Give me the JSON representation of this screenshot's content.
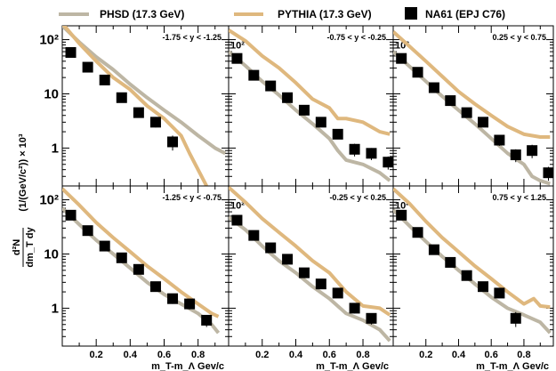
{
  "legend": [
    {
      "label": "PHSD (17.3 GeV)",
      "color": "#bdb6a4",
      "marker": "line"
    },
    {
      "label": "PYTHIA (17.3 GeV)",
      "color": "#dfb87e",
      "marker": "line"
    },
    {
      "label": "NA61 (EPJ C76)",
      "color": "#000000",
      "marker": "square"
    }
  ],
  "y_axis": {
    "title_numerator": "d²N",
    "title_denominator": "dm_T dy",
    "title_units": "(1/(GeV/c²)) × 10³",
    "ticks": [
      {
        "value": 1,
        "label": "1"
      },
      {
        "value": 10,
        "label": "10"
      },
      {
        "value": 100,
        "label": "10²"
      }
    ],
    "scale": "log",
    "ylim": [
      0.2,
      180
    ]
  },
  "x_axis": {
    "title": "m_T-m_Λ Gev/c",
    "ticks": [
      {
        "value": 0.2,
        "label": "0.2"
      },
      {
        "value": 0.4,
        "label": "0.4"
      },
      {
        "value": 0.6,
        "label": "0.6"
      },
      {
        "value": 0.8,
        "label": "0.8"
      }
    ],
    "xlim": [
      0.0,
      0.98
    ]
  },
  "chart_data": [
    {
      "type": "line",
      "panel_label": "-1.75 < y < -1.25",
      "x_data": [
        0.05,
        0.15,
        0.25,
        0.35,
        0.45,
        0.55,
        0.65,
        0.75,
        0.85
      ],
      "data": [
        58,
        31,
        18,
        8.5,
        4.5,
        3.0,
        1.3,
        null,
        null
      ],
      "data_err": [
        6,
        3,
        2,
        1,
        0.8,
        0.6,
        0.4,
        null,
        null
      ],
      "phsd": {
        "x": [
          0.0,
          0.1,
          0.2,
          0.3,
          0.4,
          0.5,
          0.6,
          0.7,
          0.8,
          0.9,
          0.96
        ],
        "y": [
          180,
          90,
          48,
          28,
          15,
          8.5,
          5.0,
          3.0,
          1.7,
          1.0,
          0.8
        ]
      },
      "pythia": {
        "x": [
          0.0,
          0.1,
          0.2,
          0.3,
          0.4,
          0.5,
          0.6,
          0.7,
          0.75,
          0.8,
          0.85
        ],
        "y": [
          200,
          85,
          40,
          20,
          12,
          6.0,
          3.5,
          1.7,
          0.8,
          0.4,
          0.2
        ]
      }
    },
    {
      "type": "line",
      "panel_label": "-0.75 < y < -0.25",
      "x_data": [
        0.05,
        0.15,
        0.25,
        0.35,
        0.45,
        0.55,
        0.65,
        0.75,
        0.85,
        0.95
      ],
      "data": [
        45,
        22,
        14,
        8.5,
        5.0,
        3.0,
        1.8,
        0.95,
        0.8,
        0.55
      ],
      "data_err": [
        5,
        3,
        2,
        1,
        0.8,
        0.5,
        0.3,
        0.25,
        0.2,
        0.15
      ],
      "phsd": {
        "x": [
          0.0,
          0.1,
          0.2,
          0.3,
          0.4,
          0.5,
          0.6,
          0.65,
          0.7,
          0.8,
          0.9,
          0.96
        ],
        "y": [
          60,
          33,
          17,
          9.5,
          5.0,
          2.8,
          1.5,
          0.9,
          0.6,
          0.5,
          0.35,
          0.25
        ]
      },
      "pythia": {
        "x": [
          0.0,
          0.1,
          0.2,
          0.3,
          0.4,
          0.5,
          0.6,
          0.65,
          0.7,
          0.8,
          0.9,
          0.96
        ],
        "y": [
          150,
          95,
          50,
          30,
          16,
          8.0,
          5.5,
          3.5,
          3.5,
          3.0,
          2.0,
          1.8
        ]
      }
    },
    {
      "type": "line",
      "panel_label": "0.25 < y < 0.75",
      "x_data": [
        0.05,
        0.15,
        0.25,
        0.35,
        0.45,
        0.55,
        0.65,
        0.75,
        0.85,
        0.95
      ],
      "data": [
        45,
        25,
        13,
        7.5,
        4.5,
        3.0,
        1.4,
        0.75,
        0.9,
        0.35
      ],
      "data_err": [
        5,
        3,
        2,
        1,
        0.8,
        0.5,
        0.3,
        0.2,
        0.25,
        0.1
      ],
      "phsd": {
        "x": [
          0.0,
          0.1,
          0.2,
          0.3,
          0.4,
          0.5,
          0.6,
          0.7,
          0.8,
          0.85,
          0.9,
          0.96
        ],
        "y": [
          60,
          32,
          17,
          9.0,
          5.0,
          2.8,
          1.5,
          0.8,
          0.5,
          0.3,
          0.25,
          0.22
        ]
      },
      "pythia": {
        "x": [
          0.0,
          0.1,
          0.2,
          0.3,
          0.4,
          0.5,
          0.6,
          0.7,
          0.8,
          0.9,
          0.96
        ],
        "y": [
          140,
          75,
          40,
          21,
          11,
          6.5,
          4.0,
          2.5,
          1.8,
          1.6,
          1.6
        ]
      }
    },
    {
      "type": "line",
      "panel_label": "-1.25 < y < -0.75",
      "x_data": [
        0.05,
        0.15,
        0.25,
        0.35,
        0.45,
        0.55,
        0.65,
        0.75,
        0.85
      ],
      "data": [
        52,
        27,
        14,
        8.5,
        5.2,
        2.5,
        1.5,
        1.2,
        0.6
      ],
      "data_err": [
        6,
        3,
        2,
        1,
        0.7,
        0.4,
        0.3,
        0.25,
        0.15
      ],
      "phsd": {
        "x": [
          0.0,
          0.1,
          0.2,
          0.3,
          0.4,
          0.5,
          0.6,
          0.7,
          0.8,
          0.88,
          0.92
        ],
        "y": [
          70,
          35,
          18,
          10,
          5.5,
          3.0,
          1.8,
          1.2,
          0.8,
          0.5,
          0.35
        ]
      },
      "pythia": {
        "x": [
          0.0,
          0.1,
          0.2,
          0.3,
          0.4,
          0.5,
          0.6,
          0.7,
          0.8,
          0.88,
          0.92
        ],
        "y": [
          160,
          80,
          38,
          20,
          11,
          6.0,
          3.5,
          2.0,
          1.2,
          0.8,
          0.7
        ]
      }
    },
    {
      "type": "line",
      "panel_label": "-0.25 < y < 0.25",
      "x_data": [
        0.05,
        0.15,
        0.25,
        0.35,
        0.45,
        0.55,
        0.65,
        0.75,
        0.85
      ],
      "data": [
        42,
        22,
        13,
        8.0,
        4.5,
        2.8,
        1.9,
        1.0,
        0.65
      ],
      "data_err": [
        5,
        3,
        2,
        1,
        0.7,
        0.5,
        0.3,
        0.2,
        0.15
      ],
      "phsd": {
        "x": [
          0.0,
          0.1,
          0.2,
          0.3,
          0.4,
          0.5,
          0.6,
          0.7,
          0.8,
          0.9,
          0.96
        ],
        "y": [
          48,
          28,
          14,
          7.5,
          4.5,
          2.5,
          1.5,
          0.8,
          0.6,
          0.4,
          0.25
        ]
      },
      "pythia": {
        "x": [
          0.0,
          0.1,
          0.2,
          0.3,
          0.4,
          0.5,
          0.6,
          0.65,
          0.7,
          0.8,
          0.9,
          0.96
        ],
        "y": [
          170,
          90,
          45,
          25,
          14,
          7.5,
          4.5,
          3.0,
          2.0,
          1.1,
          1.0,
          0.75
        ]
      }
    },
    {
      "type": "line",
      "panel_label": "0.75 < y < 1.25",
      "x_data": [
        0.05,
        0.15,
        0.25,
        0.35,
        0.45,
        0.55,
        0.65,
        0.75
      ],
      "data": [
        52,
        25,
        12,
        7.0,
        4.0,
        2.5,
        1.9,
        0.65
      ],
      "data_err": [
        6,
        3,
        2,
        1,
        0.6,
        0.4,
        0.3,
        0.2
      ],
      "phsd": {
        "x": [
          0.0,
          0.1,
          0.2,
          0.3,
          0.4,
          0.5,
          0.6,
          0.7,
          0.8,
          0.9,
          0.96
        ],
        "y": [
          65,
          33,
          17,
          9.0,
          5.0,
          2.8,
          1.6,
          1.0,
          0.75,
          0.55,
          0.35
        ]
      },
      "pythia": {
        "x": [
          0.0,
          0.1,
          0.2,
          0.3,
          0.4,
          0.5,
          0.6,
          0.7,
          0.8,
          0.86,
          0.9,
          0.96
        ],
        "y": [
          160,
          85,
          40,
          20,
          11,
          6.0,
          3.5,
          2.0,
          1.2,
          1.5,
          1.1,
          1.05
        ]
      }
    }
  ]
}
